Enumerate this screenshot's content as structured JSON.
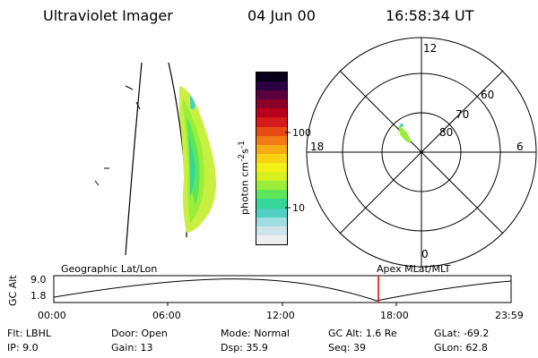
{
  "header": {
    "instrument": "Ultraviolet Imager",
    "date": "04 Jun 00",
    "time": "16:58:34 UT"
  },
  "colorbar": {
    "label_main": "photon cm",
    "label_exp1": "-2",
    "label_mid": "s",
    "label_exp2": "-1",
    "ticks": [
      "100",
      "10"
    ],
    "colors": [
      "#eeeeee",
      "#cfe4ea",
      "#9fdde0",
      "#4fd0c0",
      "#36d69a",
      "#5ee65a",
      "#9aee3a",
      "#d4f01f",
      "#f2f016",
      "#f7d314",
      "#f7aa12",
      "#f27a12",
      "#e84a14",
      "#d41a1a",
      "#b8001c",
      "#8a0028",
      "#5a0040",
      "#2a0040",
      "#080018"
    ]
  },
  "polar": {
    "labels": {
      "top": "12",
      "bottom": "0",
      "left": "18",
      "right": "6"
    },
    "lat_labels": [
      "60",
      "70",
      "80"
    ]
  },
  "timeline": {
    "axis_label": "GC Alt",
    "y_values": [
      "9.0",
      "1.8"
    ],
    "left_title": "Geographic Lat/Lon",
    "right_title": "Apex MLat/MLT",
    "ticks": [
      "00:00",
      "06:00",
      "12:00",
      "18:00",
      "23:59"
    ]
  },
  "info": {
    "flt": {
      "label": "Flt:",
      "value": "LBHL"
    },
    "ip": {
      "label": "IP:",
      "value": "9.0"
    },
    "door": {
      "label": "Door:",
      "value": "Open"
    },
    "gain": {
      "label": "Gain:",
      "value": "13"
    },
    "mode": {
      "label": "Mode:",
      "value": "Normal"
    },
    "dsp": {
      "label": "Dsp:",
      "value": "35.9"
    },
    "gcalt": {
      "label": "GC Alt:",
      "value": "1.6 Re"
    },
    "seq": {
      "label": "Seq:",
      "value": "39"
    },
    "glat": {
      "label": "GLat:",
      "value": "-69.2"
    },
    "glon": {
      "label": "GLon:",
      "value": "62.8"
    }
  }
}
